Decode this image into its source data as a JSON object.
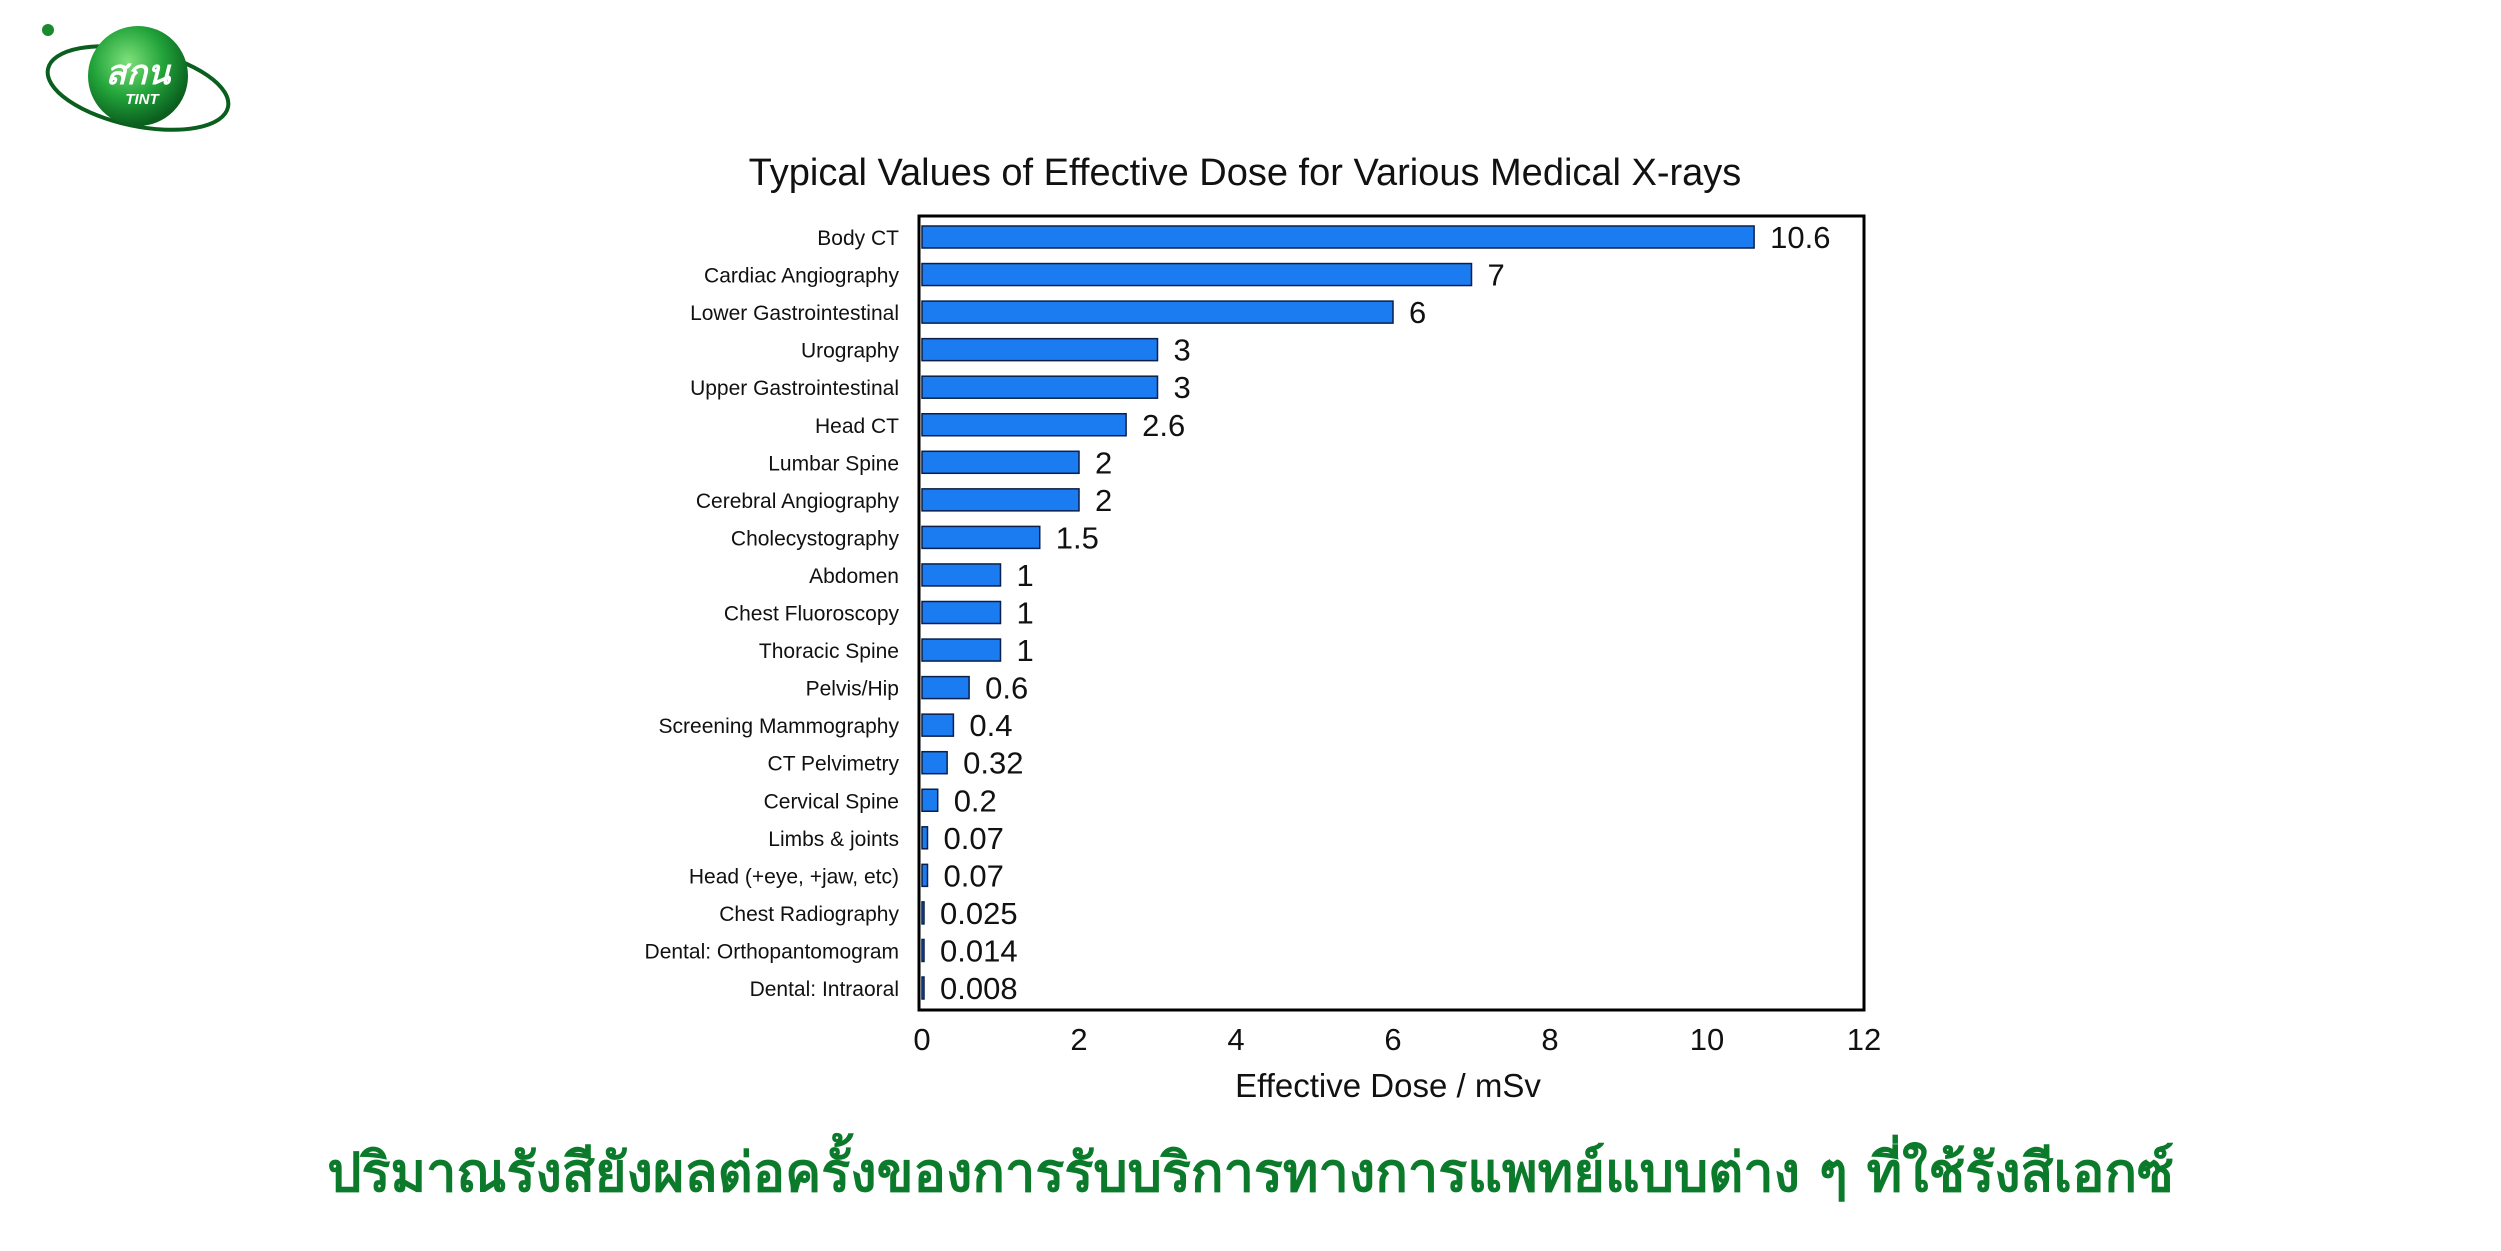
{
  "logo": {
    "text_main": "สกน",
    "text_sub": "TINT",
    "color": "#1a8a2e"
  },
  "caption": {
    "text": "ปริมาณรังสียังผลต่อครั้งของการรับบริการทางการแพทย์แบบต่าง ๆ ที่ใช้รังสีเอกซ์",
    "color": "#0b7a2a"
  },
  "chart_data": {
    "type": "bar",
    "orientation": "horizontal",
    "title": "Typical Values of Effective Dose for Various Medical X-rays",
    "xlabel": "Effective Dose / mSv",
    "ylabel": "",
    "xlim": [
      0,
      12
    ],
    "xticks": [
      "0",
      "2",
      "4",
      "6",
      "8",
      "10",
      "12"
    ],
    "grid": false,
    "bar_color": "#1a7cf0",
    "categories": [
      "Body CT",
      "Cardiac Angiography",
      "Lower Gastrointestinal",
      "Urography",
      "Upper Gastrointestinal",
      "Head CT",
      "Lumbar Spine",
      "Cerebral Angiography",
      "Cholecystography",
      "Abdomen",
      "Chest Fluoroscopy",
      "Thoracic Spine",
      "Pelvis/Hip",
      "Screening Mammography",
      "CT Pelvimetry",
      "Cervical Spine",
      "Limbs & joints",
      "Head (+eye, +jaw, etc)",
      "Chest Radiography",
      "Dental: Orthopantomogram",
      "Dental: Intraoral"
    ],
    "values": [
      10.6,
      7,
      6,
      3,
      3,
      2.6,
      2,
      2,
      1.5,
      1,
      1,
      1,
      0.6,
      0.4,
      0.32,
      0.2,
      0.07,
      0.07,
      0.025,
      0.014,
      0.008
    ],
    "data_labels": [
      "10.6",
      "7",
      "6",
      "3",
      "3",
      "2.6",
      "2",
      "2",
      "1.5",
      "1",
      "1",
      "1",
      "0.6",
      "0.4",
      "0.32",
      "0.2",
      "0.07",
      "0.07",
      "0.025",
      "0.014",
      "0.008"
    ]
  }
}
